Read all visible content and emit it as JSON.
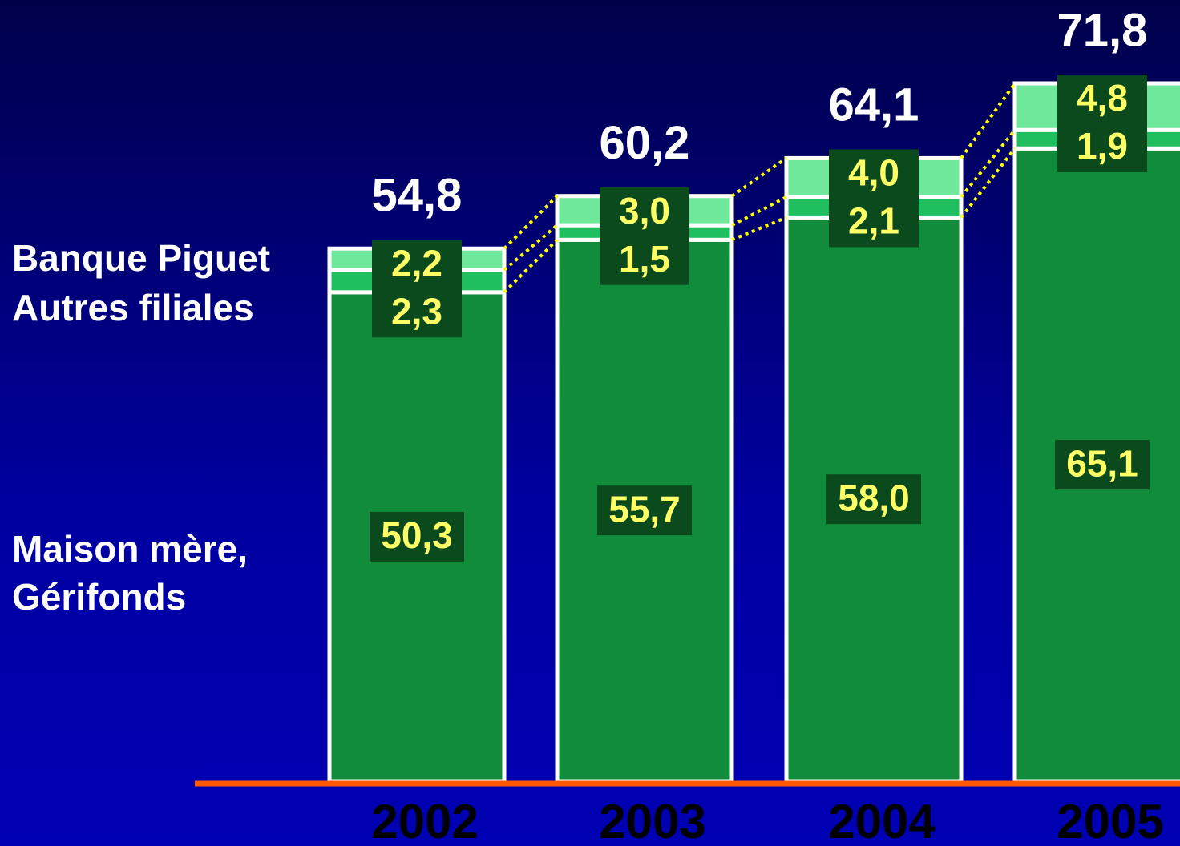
{
  "chart_data": {
    "type": "stacked_bar",
    "categories": [
      "2002",
      "2003",
      "2004",
      "2005"
    ],
    "series": [
      {
        "name": "Maison mère, Gérifonds",
        "color": "#118c3a",
        "values": [
          50.3,
          55.7,
          58.0,
          65.1
        ],
        "value_labels": [
          "50,3",
          "55,7",
          "58,0",
          "65,1"
        ]
      },
      {
        "name": "Autres filiales",
        "color": "#1fbf5f",
        "values": [
          2.3,
          1.5,
          2.1,
          1.9
        ],
        "value_labels": [
          "2,3",
          "1,5",
          "2,1",
          "1,9"
        ]
      },
      {
        "name": "Banque Piguet",
        "color": "#6fe89c",
        "values": [
          2.2,
          3.0,
          4.0,
          4.8
        ],
        "value_labels": [
          "2,2",
          "3,0",
          "4,0",
          "4,8"
        ]
      }
    ],
    "totals": [
      54.8,
      60.2,
      64.1,
      71.8
    ],
    "total_labels": [
      "54,8",
      "60,2",
      "64,1",
      "71,8"
    ]
  }
}
